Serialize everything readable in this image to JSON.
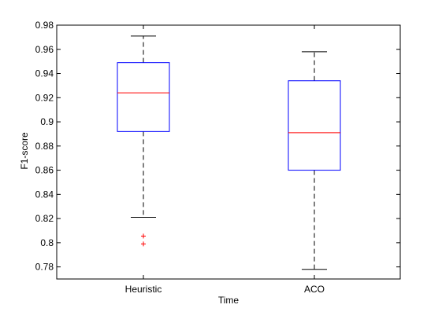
{
  "chart_data": {
    "type": "boxplot",
    "title": "",
    "xlabel": "Time",
    "ylabel": "F1-score",
    "ylim": [
      0.77,
      0.98
    ],
    "yticks": [
      0.78,
      0.8,
      0.82,
      0.84,
      0.86,
      0.88,
      0.9,
      0.92,
      0.94,
      0.96,
      0.98
    ],
    "ytick_labels": [
      "0.78",
      "0.8",
      "0.82",
      "0.84",
      "0.86",
      "0.88",
      "0.9",
      "0.92",
      "0.94",
      "0.96",
      "0.98"
    ],
    "grid": false,
    "legend": false,
    "categories": [
      "Heuristic",
      "ACO"
    ],
    "boxes": [
      {
        "category": "Heuristic",
        "whisker_low": 0.821,
        "q1": 0.892,
        "median": 0.924,
        "q3": 0.949,
        "whisker_high": 0.971,
        "outliers": [
          0.8055,
          0.799
        ]
      },
      {
        "category": "ACO",
        "whisker_low": 0.778,
        "q1": 0.86,
        "median": 0.891,
        "q3": 0.934,
        "whisker_high": 0.958,
        "outliers": []
      }
    ],
    "colors": {
      "box": "#0000ff",
      "median": "#ff0000",
      "whisker": "#000000",
      "outlier": "#ff0000",
      "axes": "#000000"
    }
  }
}
